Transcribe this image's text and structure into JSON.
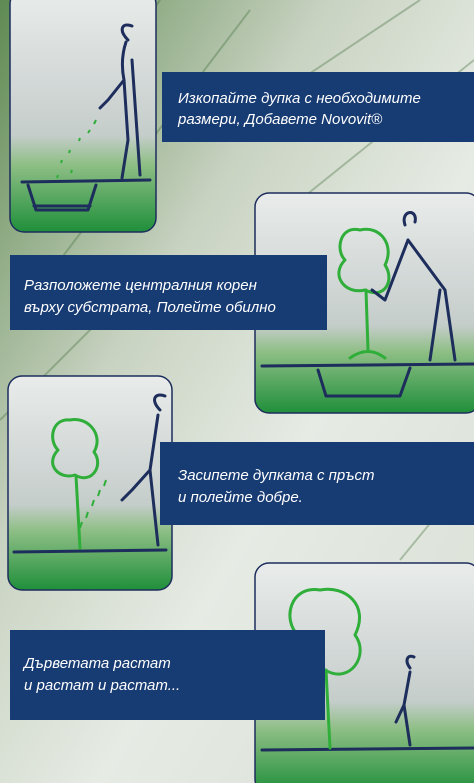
{
  "steps": [
    {
      "lines": [
        "Изкопайте дупка с необходимите",
        "размери, Добавете Novovit®"
      ]
    },
    {
      "lines": [
        "Разположете централния корен",
        "върху субстрата, Полейте обилно"
      ]
    },
    {
      "lines": [
        "Засипете дупката с пръст",
        "и полейте добре."
      ]
    },
    {
      "lines": [
        "Дърветата растат",
        "и растат и растат..."
      ]
    }
  ]
}
